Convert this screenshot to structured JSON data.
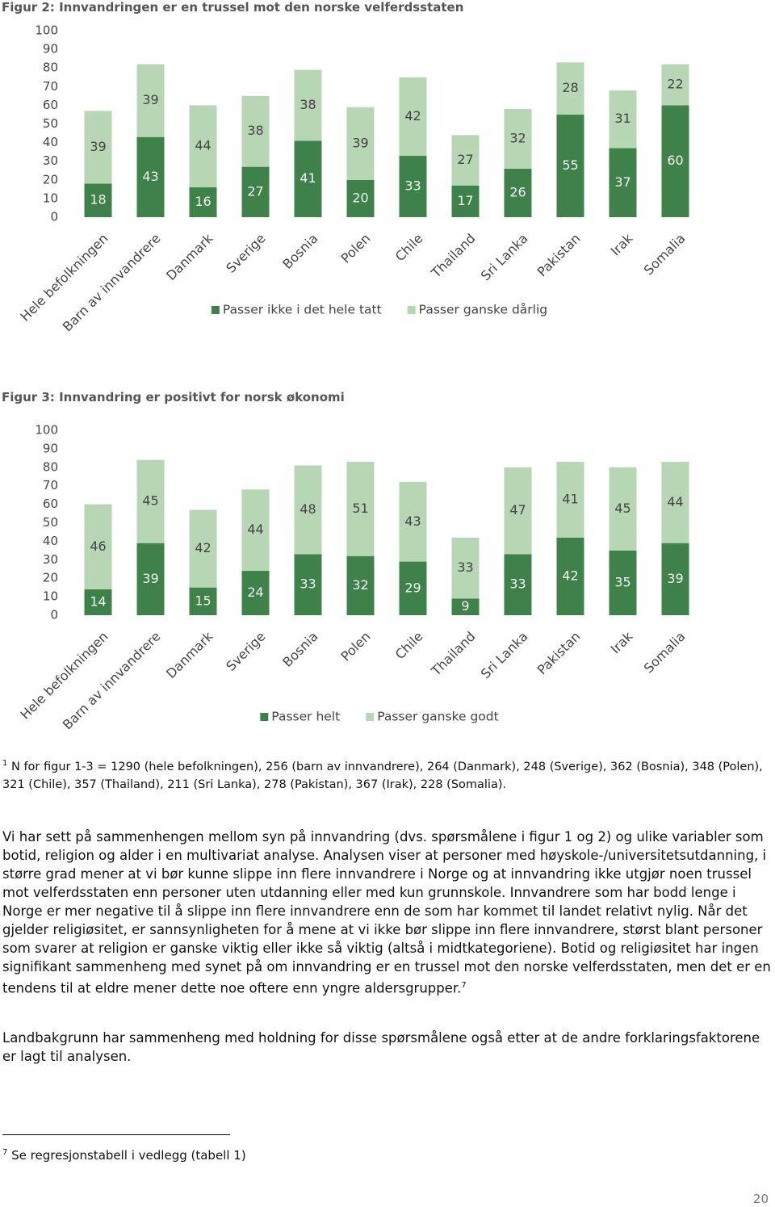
{
  "chart_data": [
    {
      "type": "stacked-bar",
      "title": "Figur 2: Innvandringen er en trussel mot den norske velferdsstaten",
      "categories": [
        "Hele befolkningen",
        "Barn av innvandrere",
        "Danmark",
        "Sverige",
        "Bosnia",
        "Polen",
        "Chile",
        "Thailand",
        "Sri Lanka",
        "Pakistan",
        "Irak",
        "Somalia"
      ],
      "series": [
        {
          "name": "Passer ikke i det hele tatt",
          "color": "#3e8149",
          "values": [
            18,
            43,
            16,
            27,
            41,
            20,
            33,
            17,
            26,
            55,
            37,
            60
          ]
        },
        {
          "name": "Passer ganske dårlig",
          "color": "#b6d6b4",
          "values": [
            39,
            39,
            44,
            38,
            38,
            39,
            42,
            27,
            32,
            28,
            31,
            22
          ]
        }
      ],
      "ylim": [
        0,
        100
      ],
      "yticks": [
        0,
        10,
        20,
        30,
        40,
        50,
        60,
        70,
        80,
        90,
        100
      ],
      "legend": "bottom"
    },
    {
      "type": "stacked-bar",
      "title": "Figur 3: Innvandring er positivt for norsk økonomi",
      "categories": [
        "Hele befolkningen",
        "Barn av innvandrere",
        "Danmark",
        "Sverige",
        "Bosnia",
        "Polen",
        "Chile",
        "Thailand",
        "Sri Lanka",
        "Pakistan",
        "Irak",
        "Somalia"
      ],
      "series": [
        {
          "name": "Passer helt",
          "color": "#3e8149",
          "values": [
            14,
            39,
            15,
            24,
            33,
            32,
            29,
            9,
            33,
            42,
            35,
            39
          ]
        },
        {
          "name": "Passer ganske godt",
          "color": "#b6d6b4",
          "values": [
            46,
            45,
            42,
            44,
            48,
            51,
            43,
            33,
            47,
            41,
            45,
            44
          ]
        }
      ],
      "ylim": [
        0,
        100
      ],
      "yticks": [
        0,
        10,
        20,
        30,
        40,
        50,
        60,
        70,
        80,
        90,
        100
      ],
      "legend": "bottom"
    }
  ],
  "footnote_1": {
    "marker": "1",
    "text": "N for figur 1-3 = 1290 (hele befolkningen), 256 (barn av innvandrere), 264 (Danmark), 248 (Sverige), 362 (Bosnia), 348 (Polen), 321 (Chile), 357 (Thailand), 211 (Sri Lanka), 278 (Pakistan), 367 (Irak), 228 (Somalia)."
  },
  "paragraphs": [
    {
      "text": "Vi har sett på sammenhengen mellom syn på innvandring (dvs. spørsmålene i figur 1 og 2) og ulike variabler som botid, religion og alder i en multivariat analyse. Analysen viser at personer med høyskole-/universitetsutdanning, i større grad mener at vi bør kunne slippe inn flere innvandrere i Norge og at innvandring ikke utgjør noen trussel mot velferdsstaten enn personer uten utdanning eller med kun grunnskole. Innvandrere som har bodd lenge i Norge er mer negative til å slippe inn flere innvandrere enn de som har kommet til landet relativt nylig. Når det gjelder religiøsitet, er sannsynligheten for å mene at vi ikke bør slippe inn flere innvandrere, størst blant personer som svarer at religion er ganske viktig eller ikke så viktig (altså i midtkategoriene). Botid og religiøsitet har ingen signifikant sammenheng med synet på om innvandring er en trussel mot den norske velferdsstaten, men det er en tendens til at eldre mener dette noe oftere enn yngre aldersgrupper.",
      "ref": "7"
    },
    {
      "text": "Landbakgrunn har sammenheng med holdning for disse spørsmålene også etter at de andre forklaringsfaktorene er lagt til analysen."
    }
  ],
  "footnote_7": {
    "marker": "7",
    "text": "Se regresjonstabell i vedlegg (tabell 1)"
  },
  "page_number": "20"
}
